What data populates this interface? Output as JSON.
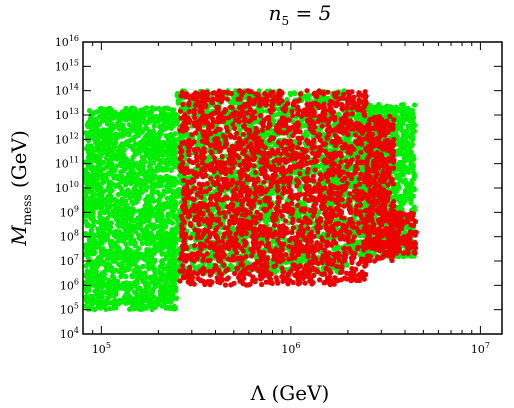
{
  "chart_data": {
    "type": "scatter",
    "title": "n5 = 5",
    "title_main": "n",
    "title_sub": "5",
    "title_rest": " = 5",
    "xlabel": "Λ (GeV)",
    "ylabel_main": "M",
    "ylabel_sub": "mess",
    "ylabel_rest": " (GeV)",
    "xscale": "log",
    "yscale": "log",
    "xlim": [
      80000,
      13000000
    ],
    "ylim": [
      10000,
      10000000000000000
    ],
    "x_ticks": [
      {
        "value": 100000,
        "base": "10",
        "exp": "5"
      },
      {
        "value": 1000000,
        "base": "10",
        "exp": "6"
      },
      {
        "value": 10000000,
        "base": "10",
        "exp": "7"
      }
    ],
    "y_ticks": [
      {
        "value": 10000,
        "base": "10",
        "exp": "4"
      },
      {
        "value": 100000,
        "base": "10",
        "exp": "5"
      },
      {
        "value": 1000000,
        "base": "10",
        "exp": "6"
      },
      {
        "value": 10000000,
        "base": "10",
        "exp": "7"
      },
      {
        "value": 100000000,
        "base": "10",
        "exp": "8"
      },
      {
        "value": 1000000000,
        "base": "10",
        "exp": "9"
      },
      {
        "value": 10000000000,
        "base": "10",
        "exp": "10"
      },
      {
        "value": 100000000000,
        "base": "10",
        "exp": "11"
      },
      {
        "value": 1000000000000,
        "base": "10",
        "exp": "12"
      },
      {
        "value": 10000000000000,
        "base": "10",
        "exp": "13"
      },
      {
        "value": 100000000000000,
        "base": "10",
        "exp": "14"
      },
      {
        "value": 1000000000000000,
        "base": "10",
        "exp": "15"
      },
      {
        "value": 10000000000000000,
        "base": "10",
        "exp": "16"
      }
    ],
    "series": [
      {
        "color": "#888888",
        "regions": [
          {
            "x": [
              82000,
              95000
            ],
            "y": [
              2000000,
              3000000
            ]
          },
          {
            "x": [
              82000,
              92000
            ],
            "y": [
              20000000000,
              30000000000
            ]
          },
          {
            "x": [
              2200000,
              2700000
            ],
            "y": [
              100000000000,
              300000000000
            ]
          },
          {
            "x": [
              2800000,
              3200000
            ],
            "y": [
              30000000,
              80000000
            ]
          }
        ]
      },
      {
        "color": "#00ee00",
        "regions": [
          {
            "x": [
              82000,
              250000
            ],
            "y": [
              100000,
              20000000000000
            ]
          },
          {
            "x": [
              250000,
              2000000
            ],
            "y": [
              3000000,
              100000000000000
            ]
          },
          {
            "x": [
              2000000,
              4500000
            ],
            "y": [
              15000000,
              30000000000000
            ]
          }
        ]
      },
      {
        "color": "#ee0000",
        "regions": [
          {
            "x": [
              260000,
              2500000
            ],
            "y": [
              1000000,
              100000000000000
            ]
          },
          {
            "x": [
              2500000,
              3500000
            ],
            "y": [
              10000000,
              10000000000000
            ]
          },
          {
            "x": [
              3500000,
              4600000
            ],
            "y": [
              20000000,
              1000000000
            ]
          }
        ]
      }
    ]
  }
}
